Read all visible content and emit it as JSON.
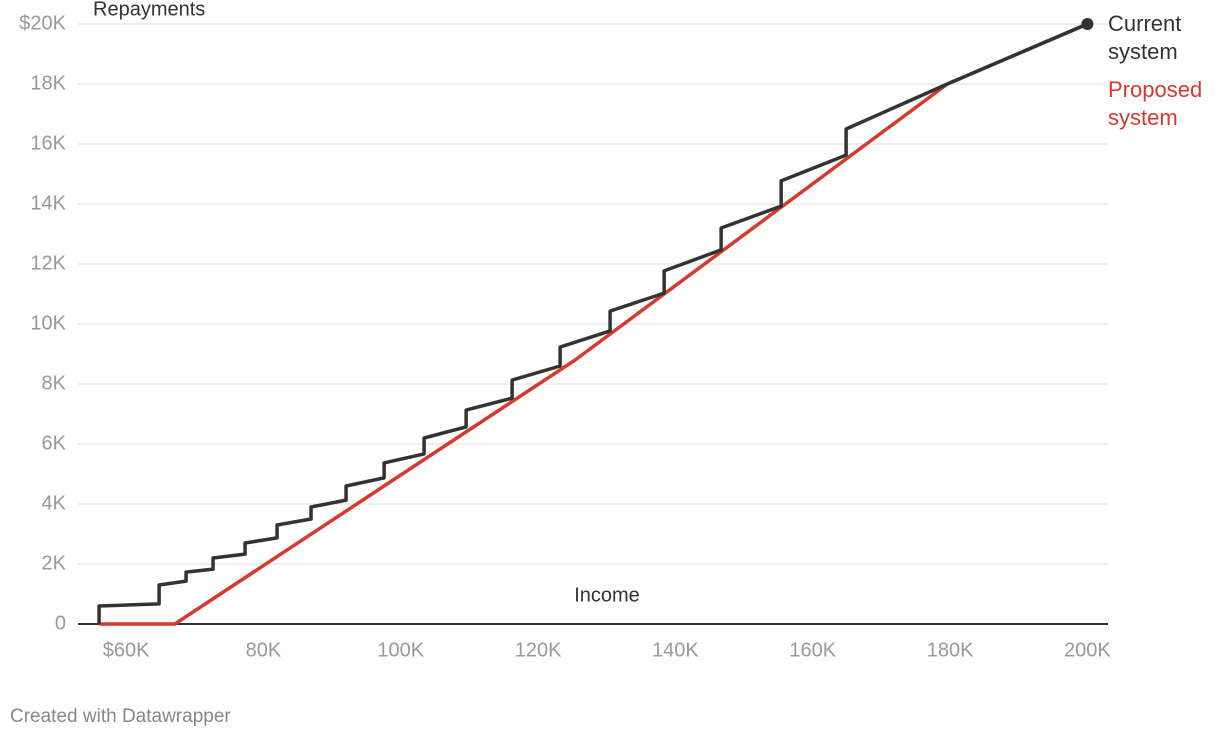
{
  "chart_data": {
    "type": "line",
    "title": "Repayments",
    "x_label": "Income",
    "footer": "Created with Datawrapper",
    "xlim": [
      53000,
      203000
    ],
    "ylim": [
      0,
      20000
    ],
    "xticks": [
      {
        "value": 60000,
        "label": "$60K"
      },
      {
        "value": 80000,
        "label": "80K"
      },
      {
        "value": 100000,
        "label": "100K"
      },
      {
        "value": 120000,
        "label": "120K"
      },
      {
        "value": 140000,
        "label": "140K"
      },
      {
        "value": 160000,
        "label": "160K"
      },
      {
        "value": 180000,
        "label": "180K"
      },
      {
        "value": 200000,
        "label": "200K"
      }
    ],
    "yticks": [
      0,
      {
        "value": 2000,
        "label": "2K"
      },
      {
        "value": 4000,
        "label": "4K"
      },
      {
        "value": 6000,
        "label": "6K"
      },
      {
        "value": 8000,
        "label": "8K"
      },
      {
        "value": 10000,
        "label": "10K"
      },
      {
        "value": 12000,
        "label": "12K"
      },
      {
        "value": 14000,
        "label": "14K"
      },
      {
        "value": 16000,
        "label": "16K"
      },
      {
        "value": 18000,
        "label": "18K"
      },
      {
        "value": 20000,
        "label": "$20K"
      }
    ],
    "grid": true,
    "series": [
      {
        "name": "Current system",
        "color": "#333333",
        "x": [
          56070,
          56070,
          64810,
          64810,
          68740,
          68740,
          72670,
          72670,
          77330,
          77330,
          81990,
          81990,
          86940,
          86940,
          92040,
          92040,
          97580,
          97580,
          103400,
          103400,
          109520,
          109520,
          116220,
          116220,
          123210,
          123210,
          130490,
          130490,
          138360,
          138360,
          146660,
          146660,
          155400,
          155400,
          164860,
          164860,
          179600,
          200000
        ],
        "values": [
          0,
          600,
          670,
          1300,
          1430,
          1730,
          1830,
          2200,
          2330,
          2700,
          2870,
          3300,
          3500,
          3900,
          4130,
          4600,
          4870,
          5370,
          5670,
          6200,
          6570,
          7130,
          7530,
          8130,
          8600,
          9230,
          9770,
          10430,
          11030,
          11770,
          12470,
          13200,
          13930,
          14770,
          15630,
          16500,
          18000,
          20000
        ]
      },
      {
        "name": "Proposed system",
        "color": "#d63a2f",
        "x": [
          56070,
          67100,
          125400,
          179600,
          200000
        ],
        "values": [
          0,
          0,
          8800,
          18000,
          20000
        ]
      }
    ]
  }
}
